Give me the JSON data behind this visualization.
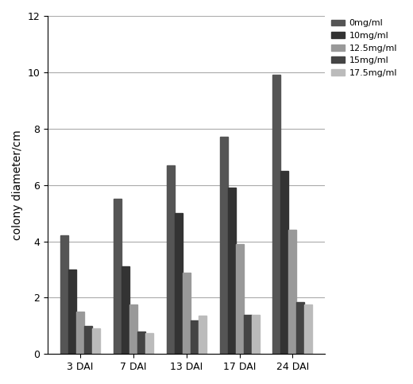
{
  "categories": [
    "3 DAI",
    "7 DAI",
    "13 DAI",
    "17 DAI",
    "24 DAI"
  ],
  "series": [
    {
      "label": "0mg/ml",
      "values": [
        4.2,
        5.5,
        6.7,
        7.7,
        9.9
      ],
      "color": "#555555"
    },
    {
      "label": "10mg/ml",
      "values": [
        3.0,
        3.1,
        5.0,
        5.9,
        6.5
      ],
      "color": "#333333"
    },
    {
      "label": "12.5mg/ml",
      "values": [
        1.5,
        1.75,
        2.9,
        3.9,
        4.4
      ],
      "color": "#999999"
    },
    {
      "label": "15mg/ml",
      "values": [
        1.0,
        0.8,
        1.2,
        1.4,
        1.85
      ],
      "color": "#444444"
    },
    {
      "label": "17.5mg/ml",
      "values": [
        0.9,
        0.75,
        1.35,
        1.4,
        1.75
      ],
      "color": "#bbbbbb"
    }
  ],
  "ylabel": "colony diameter/cm",
  "ylim": [
    0,
    12
  ],
  "yticks": [
    0,
    2,
    4,
    6,
    8,
    10,
    12
  ],
  "bar_width": 0.15,
  "background_color": "#ffffff",
  "legend_fontsize": 8,
  "axis_fontsize": 10,
  "tick_fontsize": 9
}
